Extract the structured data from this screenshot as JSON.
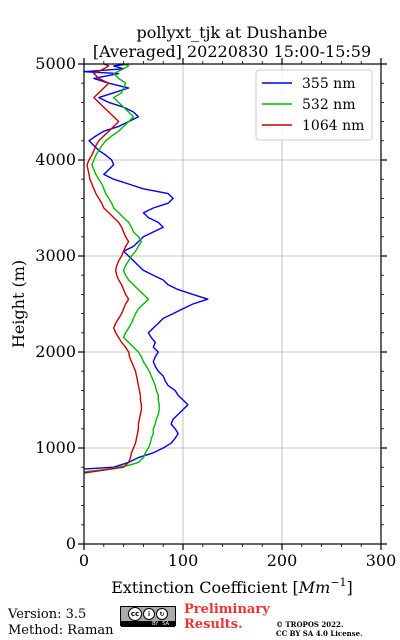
{
  "chart_data": {
    "type": "line",
    "title_line1": "pollyxt_tjk at Dushanbe",
    "title_line2": "[Averaged] 20220830 15:00-15:59",
    "xlabel_text": "Extinction Coefficient [",
    "xlabel_unit": "Mm",
    "xlabel_exp": "−1",
    "xlabel_close": "]",
    "ylabel": "Height (m)",
    "xlim": [
      0,
      300
    ],
    "ylim": [
      0,
      5000
    ],
    "xticks": [
      0,
      100,
      200,
      300
    ],
    "yticks": [
      0,
      1000,
      2000,
      3000,
      4000,
      5000
    ],
    "grid": true,
    "legend_position": "top-right",
    "series": [
      {
        "name": "355 nm",
        "color": "#0000ee",
        "x": [
          0,
          30,
          45,
          55,
          70,
          80,
          88,
          92,
          95,
          92,
          88,
          90,
          95,
          100,
          105,
          100,
          95,
          92,
          85,
          82,
          80,
          75,
          72,
          70,
          72,
          75,
          70,
          72,
          68,
          65,
          70,
          75,
          80,
          90,
          100,
          110,
          125,
          110,
          95,
          85,
          80,
          70,
          60,
          55,
          50,
          45,
          40,
          50,
          55,
          60,
          70,
          80,
          75,
          65,
          60,
          70,
          85,
          90,
          85,
          60,
          45,
          30,
          20,
          25,
          30,
          28,
          22,
          15,
          10,
          5,
          12,
          20,
          35,
          45,
          55,
          50,
          40,
          25,
          15,
          30,
          45,
          25,
          10,
          35,
          0,
          40,
          30,
          45
        ],
        "y": [
          780,
          800,
          850,
          900,
          950,
          1000,
          1050,
          1100,
          1150,
          1200,
          1250,
          1300,
          1350,
          1400,
          1450,
          1500,
          1550,
          1600,
          1650,
          1700,
          1750,
          1800,
          1850,
          1900,
          1950,
          2000,
          2050,
          2100,
          2150,
          2200,
          2250,
          2300,
          2350,
          2400,
          2450,
          2500,
          2550,
          2600,
          2650,
          2700,
          2750,
          2800,
          2850,
          2900,
          2950,
          3000,
          3050,
          3100,
          3150,
          3200,
          3250,
          3300,
          3350,
          3400,
          3450,
          3500,
          3550,
          3600,
          3650,
          3700,
          3750,
          3800,
          3850,
          3900,
          3950,
          4000,
          4050,
          4100,
          4150,
          4200,
          4250,
          4300,
          4350,
          4400,
          4450,
          4500,
          4550,
          4600,
          4650,
          4700,
          4750,
          4800,
          4850,
          4900,
          4920,
          4950,
          4980,
          5000
        ]
      },
      {
        "name": "532 nm",
        "color": "#00bb00",
        "x": [
          0,
          25,
          45,
          55,
          60,
          62,
          65,
          67,
          68,
          70,
          70,
          72,
          73,
          75,
          76,
          76,
          75,
          75,
          73,
          72,
          70,
          68,
          66,
          63,
          60,
          58,
          55,
          50,
          45,
          40,
          42,
          45,
          48,
          50,
          52,
          55,
          60,
          65,
          60,
          55,
          50,
          45,
          42,
          40,
          42,
          45,
          48,
          52,
          55,
          58,
          55,
          50,
          48,
          45,
          40,
          35,
          30,
          28,
          25,
          22,
          20,
          18,
          15,
          12,
          10,
          8,
          10,
          12,
          15,
          18,
          22,
          28,
          35,
          40,
          45,
          50,
          45,
          40,
          35,
          30,
          38,
          40,
          42,
          35,
          30,
          40,
          45,
          40
        ],
        "y": [
          750,
          780,
          820,
          850,
          900,
          950,
          1000,
          1050,
          1100,
          1150,
          1200,
          1250,
          1300,
          1350,
          1400,
          1450,
          1500,
          1550,
          1600,
          1650,
          1700,
          1750,
          1800,
          1850,
          1900,
          1950,
          2000,
          2050,
          2100,
          2150,
          2200,
          2250,
          2300,
          2350,
          2400,
          2450,
          2500,
          2550,
          2600,
          2650,
          2700,
          2750,
          2800,
          2850,
          2900,
          2950,
          3000,
          3050,
          3100,
          3150,
          3200,
          3250,
          3300,
          3350,
          3400,
          3450,
          3500,
          3550,
          3600,
          3650,
          3700,
          3750,
          3800,
          3850,
          3900,
          3950,
          4000,
          4050,
          4100,
          4150,
          4200,
          4250,
          4300,
          4350,
          4400,
          4450,
          4500,
          4550,
          4600,
          4650,
          4700,
          4750,
          4800,
          4850,
          4900,
          4950,
          4980,
          5000
        ]
      },
      {
        "name": "1064 nm",
        "color": "#cc0000",
        "x": [
          0,
          20,
          40,
          45,
          47,
          48,
          50,
          52,
          53,
          54,
          55,
          55,
          56,
          57,
          58,
          58,
          57,
          57,
          56,
          55,
          54,
          53,
          52,
          50,
          48,
          46,
          45,
          42,
          38,
          35,
          32,
          30,
          32,
          35,
          38,
          40,
          42,
          45,
          42,
          40,
          38,
          35,
          33,
          32,
          33,
          35,
          38,
          40,
          42,
          45,
          42,
          40,
          38,
          35,
          30,
          25,
          20,
          18,
          15,
          12,
          10,
          8,
          6,
          5,
          4,
          3,
          5,
          8,
          10,
          12,
          15,
          20,
          25,
          30,
          35,
          30,
          25,
          20,
          15,
          10,
          15,
          20,
          25,
          15,
          10,
          20,
          25,
          20
        ],
        "y": [
          740,
          770,
          800,
          850,
          900,
          950,
          1000,
          1050,
          1100,
          1150,
          1200,
          1250,
          1300,
          1350,
          1400,
          1450,
          1500,
          1550,
          1600,
          1650,
          1700,
          1750,
          1800,
          1850,
          1900,
          1950,
          2000,
          2050,
          2100,
          2150,
          2200,
          2250,
          2300,
          2350,
          2400,
          2450,
          2500,
          2550,
          2600,
          2650,
          2700,
          2750,
          2800,
          2850,
          2900,
          2950,
          3000,
          3050,
          3100,
          3150,
          3200,
          3250,
          3300,
          3350,
          3400,
          3450,
          3500,
          3550,
          3600,
          3650,
          3700,
          3750,
          3800,
          3850,
          3900,
          3950,
          4000,
          4050,
          4100,
          4150,
          4200,
          4250,
          4300,
          4350,
          4400,
          4450,
          4500,
          4550,
          4600,
          4650,
          4700,
          4750,
          4800,
          4850,
          4900,
          4950,
          4980,
          5000
        ]
      }
    ]
  },
  "footer": {
    "version": "Version: 3.5",
    "method": "Method: Raman",
    "license_badge_top": "cc",
    "license_by": "BY",
    "license_sa": "SA",
    "preliminary_line1": "Preliminary",
    "preliminary_line2": "Results.",
    "copyright_line1": "© TROPOS 2022.",
    "copyright_line2": "CC BY SA 4.0 License.",
    "preliminary_color": "#ee3333"
  }
}
